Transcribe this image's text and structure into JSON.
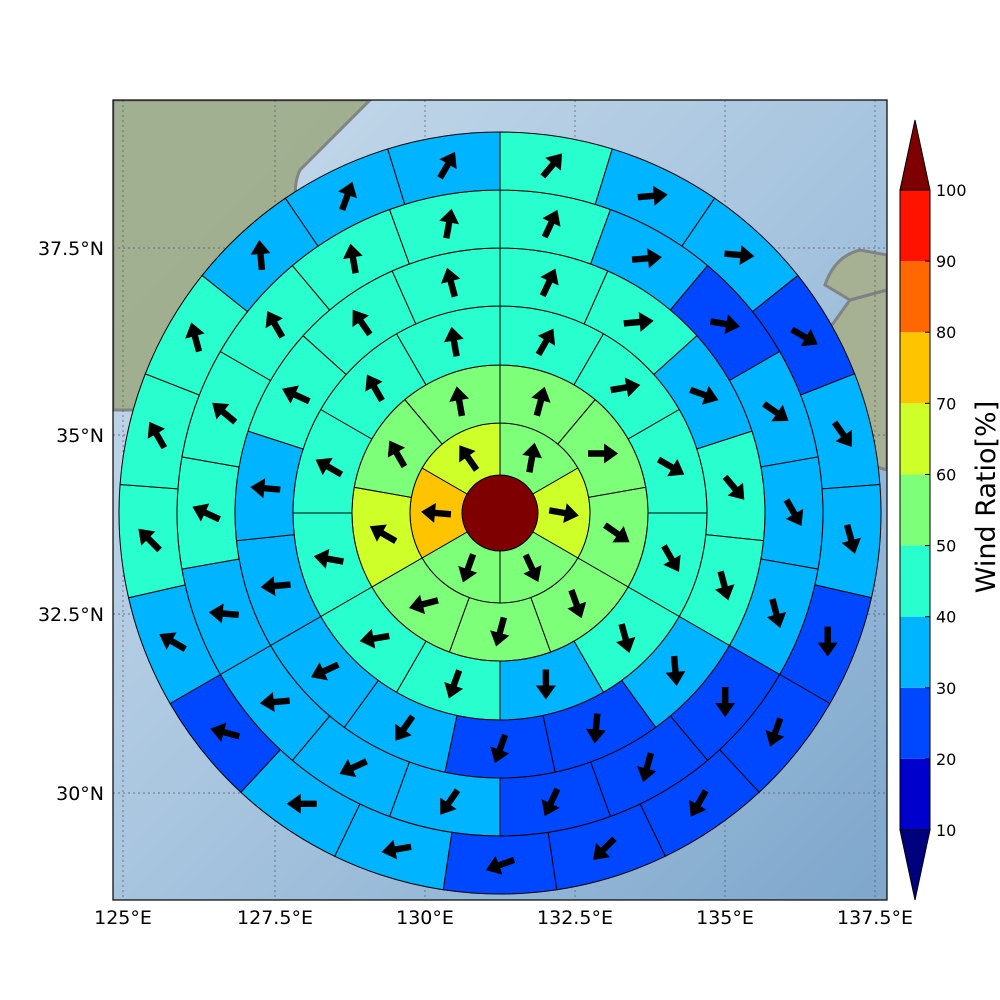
{
  "map": {
    "lat_ticks": [
      "37.5°N",
      "35°N",
      "32.5°N",
      "30°N"
    ],
    "lon_ticks": [
      "125°E",
      "127.5°E",
      "130°E",
      "132.5°E",
      "135°E",
      "137.5°E"
    ],
    "land_color": "#9aa88a",
    "sea_color": "#a9c4dc",
    "coast_color": "#808080"
  },
  "colorbar": {
    "title": "Wind Ratio[%]",
    "tick_labels": [
      "10",
      "20",
      "30",
      "40",
      "50",
      "60",
      "70",
      "80",
      "90",
      "100"
    ],
    "bin_colors": [
      "#0000cd",
      "#0048ff",
      "#00b4ff",
      "#29ffce",
      "#7dff7a",
      "#ceff29",
      "#ffc400",
      "#ff6800",
      "#ff1300"
    ],
    "under_color": "#00007f",
    "over_color": "#7f0000"
  },
  "wind_rose": {
    "center_value": 100,
    "rings": [
      {
        "ring": 1,
        "sectors": [
          {
            "value": 58,
            "wind_dir_deg": 10
          },
          {
            "value": 62,
            "wind_dir_deg": 100
          },
          {
            "value": 55,
            "wind_dir_deg": 155
          },
          {
            "value": 52,
            "wind_dir_deg": 200
          },
          {
            "value": 72,
            "wind_dir_deg": 275
          },
          {
            "value": 62,
            "wind_dir_deg": 325
          }
        ]
      },
      {
        "ring": 2,
        "sectors": [
          {
            "value": 58,
            "wind_dir_deg": 15
          },
          {
            "value": 52,
            "wind_dir_deg": 90
          },
          {
            "value": 55,
            "wind_dir_deg": 125
          },
          {
            "value": 52,
            "wind_dir_deg": 160
          },
          {
            "value": 55,
            "wind_dir_deg": 195
          },
          {
            "value": 55,
            "wind_dir_deg": 255
          },
          {
            "value": 62,
            "wind_dir_deg": 300
          },
          {
            "value": 55,
            "wind_dir_deg": 330
          },
          {
            "value": 55,
            "wind_dir_deg": 350
          }
        ]
      },
      {
        "ring": 3,
        "sectors": [
          {
            "value": 45,
            "wind_dir_deg": 30
          },
          {
            "value": 45,
            "wind_dir_deg": 80
          },
          {
            "value": 45,
            "wind_dir_deg": 120
          },
          {
            "value": 45,
            "wind_dir_deg": 150
          },
          {
            "value": 45,
            "wind_dir_deg": 165
          },
          {
            "value": 35,
            "wind_dir_deg": 180
          },
          {
            "value": 45,
            "wind_dir_deg": 200
          },
          {
            "value": 45,
            "wind_dir_deg": 260
          },
          {
            "value": 45,
            "wind_dir_deg": 280
          },
          {
            "value": 45,
            "wind_dir_deg": 300
          },
          {
            "value": 45,
            "wind_dir_deg": 330
          },
          {
            "value": 45,
            "wind_dir_deg": 350
          }
        ]
      },
      {
        "ring": 4,
        "sectors": [
          {
            "value": 45,
            "wind_dir_deg": 25
          },
          {
            "value": 45,
            "wind_dir_deg": 85
          },
          {
            "value": 35,
            "wind_dir_deg": 110
          },
          {
            "value": 45,
            "wind_dir_deg": 140
          },
          {
            "value": 45,
            "wind_dir_deg": 165
          },
          {
            "value": 35,
            "wind_dir_deg": 175
          },
          {
            "value": 25,
            "wind_dir_deg": 185
          },
          {
            "value": 25,
            "wind_dir_deg": 200
          },
          {
            "value": 35,
            "wind_dir_deg": 215
          },
          {
            "value": 35,
            "wind_dir_deg": 245
          },
          {
            "value": 35,
            "wind_dir_deg": 265
          },
          {
            "value": 35,
            "wind_dir_deg": 275
          },
          {
            "value": 45,
            "wind_dir_deg": 295
          },
          {
            "value": 45,
            "wind_dir_deg": 325
          },
          {
            "value": 45,
            "wind_dir_deg": 345
          }
        ]
      },
      {
        "ring": 5,
        "sectors": [
          {
            "value": 45,
            "wind_dir_deg": 25
          },
          {
            "value": 35,
            "wind_dir_deg": 85
          },
          {
            "value": 25,
            "wind_dir_deg": 100
          },
          {
            "value": 35,
            "wind_dir_deg": 125
          },
          {
            "value": 35,
            "wind_dir_deg": 150
          },
          {
            "value": 35,
            "wind_dir_deg": 165
          },
          {
            "value": 25,
            "wind_dir_deg": 180
          },
          {
            "value": 25,
            "wind_dir_deg": 195
          },
          {
            "value": 25,
            "wind_dir_deg": 205
          },
          {
            "value": 35,
            "wind_dir_deg": 215
          },
          {
            "value": 35,
            "wind_dir_deg": 245
          },
          {
            "value": 35,
            "wind_dir_deg": 265
          },
          {
            "value": 35,
            "wind_dir_deg": 275
          },
          {
            "value": 45,
            "wind_dir_deg": 295
          },
          {
            "value": 45,
            "wind_dir_deg": 310
          },
          {
            "value": 45,
            "wind_dir_deg": 330
          },
          {
            "value": 45,
            "wind_dir_deg": 350
          },
          {
            "value": 45,
            "wind_dir_deg": 10
          }
        ]
      },
      {
        "ring": 6,
        "sectors": [
          {
            "value": 45,
            "wind_dir_deg": 40
          },
          {
            "value": 35,
            "wind_dir_deg": 85
          },
          {
            "value": 35,
            "wind_dir_deg": 95
          },
          {
            "value": 25,
            "wind_dir_deg": 120
          },
          {
            "value": 35,
            "wind_dir_deg": 145
          },
          {
            "value": 35,
            "wind_dir_deg": 165
          },
          {
            "value": 25,
            "wind_dir_deg": 180
          },
          {
            "value": 25,
            "wind_dir_deg": 200
          },
          {
            "value": 25,
            "wind_dir_deg": 210
          },
          {
            "value": 25,
            "wind_dir_deg": 225
          },
          {
            "value": 25,
            "wind_dir_deg": 250
          },
          {
            "value": 35,
            "wind_dir_deg": 260
          },
          {
            "value": 35,
            "wind_dir_deg": 270
          },
          {
            "value": 25,
            "wind_dir_deg": 285
          },
          {
            "value": 35,
            "wind_dir_deg": 300
          },
          {
            "value": 45,
            "wind_dir_deg": 315
          },
          {
            "value": 45,
            "wind_dir_deg": 330
          },
          {
            "value": 45,
            "wind_dir_deg": 345
          },
          {
            "value": 35,
            "wind_dir_deg": 355
          },
          {
            "value": 35,
            "wind_dir_deg": 20
          },
          {
            "value": 35,
            "wind_dir_deg": 30
          }
        ]
      }
    ]
  }
}
